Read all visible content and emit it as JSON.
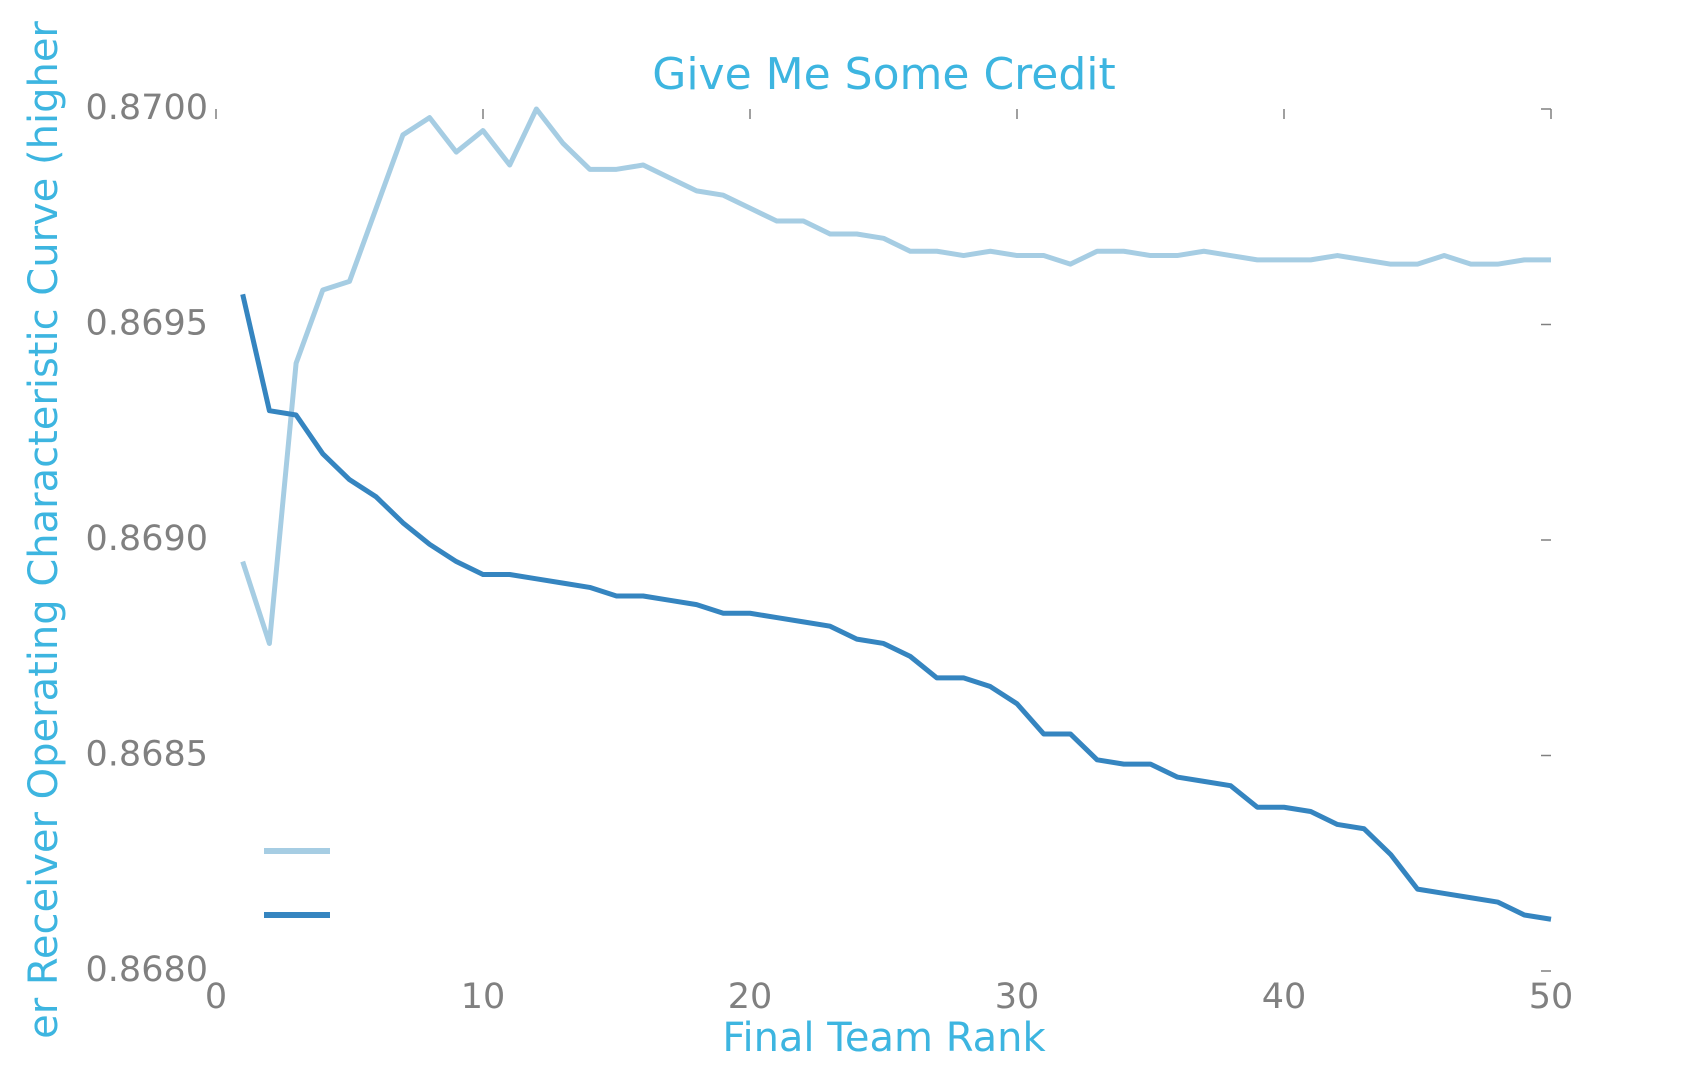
{
  "chart_data": {
    "type": "line",
    "title": "Give Me Some Credit",
    "x_label": "Final Team Rank",
    "y_label": "er Receiver Operating Characteristic Curve (higher",
    "x": [
      1,
      2,
      3,
      4,
      5,
      6,
      7,
      8,
      9,
      10,
      11,
      12,
      13,
      14,
      15,
      16,
      17,
      18,
      19,
      20,
      21,
      22,
      23,
      24,
      25,
      26,
      27,
      28,
      29,
      30,
      31,
      32,
      33,
      34,
      35,
      36,
      37,
      38,
      39,
      40,
      41,
      42,
      43,
      44,
      45,
      46,
      47,
      48,
      49,
      50
    ],
    "series": [
      {
        "color": "#a6cde3",
        "values": [
          0.86895,
          0.86876,
          0.86941,
          0.86958,
          0.8696,
          0.86977,
          0.86994,
          0.86998,
          0.8699,
          0.86995,
          0.86987,
          0.87,
          0.86992,
          0.86986,
          0.86986,
          0.86987,
          0.86984,
          0.86981,
          0.8698,
          0.86977,
          0.86974,
          0.86974,
          0.86971,
          0.86971,
          0.8697,
          0.86967,
          0.86967,
          0.86966,
          0.86967,
          0.86966,
          0.86966,
          0.86964,
          0.86967,
          0.86967,
          0.86966,
          0.86966,
          0.86967,
          0.86966,
          0.86965,
          0.86965,
          0.86965,
          0.86966,
          0.86965,
          0.86964,
          0.86964,
          0.86966,
          0.86964,
          0.86964,
          0.86965,
          0.86965
        ]
      },
      {
        "color": "#3585c0",
        "values": [
          0.86957,
          0.8693,
          0.86929,
          0.8692,
          0.86914,
          0.8691,
          0.86904,
          0.86899,
          0.86895,
          0.86892,
          0.86892,
          0.86891,
          0.8689,
          0.86889,
          0.86887,
          0.86887,
          0.86886,
          0.86885,
          0.86883,
          0.86883,
          0.86882,
          0.86881,
          0.8688,
          0.86877,
          0.86876,
          0.86873,
          0.86868,
          0.86868,
          0.86866,
          0.86862,
          0.86855,
          0.86855,
          0.86849,
          0.86848,
          0.86848,
          0.86845,
          0.86844,
          0.86843,
          0.86838,
          0.86838,
          0.86837,
          0.86834,
          0.86833,
          0.86827,
          0.86819,
          0.86818,
          0.86817,
          0.86816,
          0.86813,
          0.86812
        ]
      }
    ],
    "xlim": [
      0,
      50
    ],
    "xticks": [
      0,
      10,
      20,
      30,
      40,
      50
    ],
    "ylim": [
      0.868,
      0.87
    ],
    "yticks": [
      {
        "value": 0.868,
        "label": "0.8680"
      },
      {
        "value": 0.8685,
        "label": "0.8685"
      },
      {
        "value": 0.869,
        "label": "0.8690"
      },
      {
        "value": 0.8695,
        "label": "0.8695"
      },
      {
        "value": 0.87,
        "label": "0.8700"
      }
    ],
    "grid": false
  }
}
